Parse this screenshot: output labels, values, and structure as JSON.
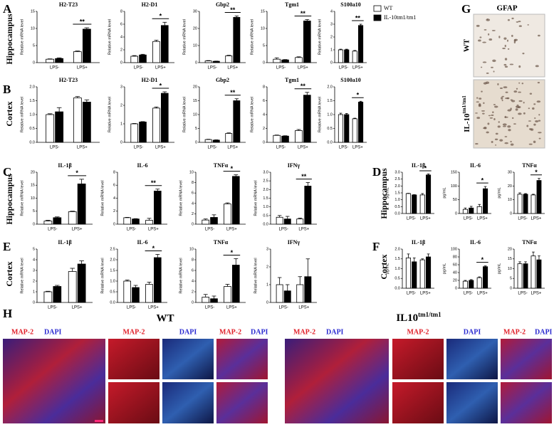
{
  "chart_data": [
    {
      "type": "bar",
      "title": "H2-T23",
      "ylabel": "Relative mRNA level",
      "categories": [
        "LPS-",
        "LPS+"
      ],
      "ylim": [
        0,
        15
      ],
      "yticks": [
        0,
        5,
        10,
        15
      ],
      "annotation": "**",
      "series": [
        {
          "name": "WT",
          "color": "#ffffff",
          "values": [
            1.0,
            3.2
          ],
          "errors": [
            0.1,
            0.2
          ]
        },
        {
          "name": "IL-10tm1/tm1",
          "color": "#000000",
          "values": [
            1.2,
            9.8
          ],
          "errors": [
            0.2,
            0.4
          ]
        }
      ]
    },
    {
      "type": "bar",
      "title": "H2-D1",
      "ylabel": "Relative mRNA level",
      "categories": [
        "LPS-",
        "LPS+"
      ],
      "ylim": [
        0,
        8
      ],
      "yticks": [
        0,
        2,
        4,
        6,
        8
      ],
      "annotation": "*",
      "series": [
        {
          "color": "#ffffff",
          "values": [
            1.0,
            3.3
          ],
          "errors": [
            0.1,
            0.2
          ]
        },
        {
          "color": "#000000",
          "values": [
            1.2,
            5.8
          ],
          "errors": [
            0.1,
            0.5
          ]
        }
      ]
    },
    {
      "type": "bar",
      "title": "Gbp2",
      "ylabel": "Relative mRNA level",
      "categories": [
        "LPS-",
        "LPS+"
      ],
      "ylim": [
        0,
        30
      ],
      "yticks": [
        0,
        10,
        20,
        30
      ],
      "annotation": "**",
      "series": [
        {
          "color": "#ffffff",
          "values": [
            1.0,
            4.0
          ],
          "errors": [
            0.2,
            0.3
          ]
        },
        {
          "color": "#000000",
          "values": [
            0.8,
            26.5
          ],
          "errors": [
            0.1,
            0.8
          ]
        }
      ]
    },
    {
      "type": "bar",
      "title": "Tgm1",
      "ylabel": "Relative mRNA level",
      "categories": [
        "LPS-",
        "LPS+"
      ],
      "ylim": [
        0,
        15
      ],
      "yticks": [
        0,
        5,
        10,
        15
      ],
      "annotation": "**",
      "series": [
        {
          "color": "#ffffff",
          "values": [
            1.0,
            1.5
          ],
          "errors": [
            0.4,
            0.2
          ]
        },
        {
          "color": "#000000",
          "values": [
            0.8,
            12.2
          ],
          "errors": [
            0.1,
            0.4
          ]
        }
      ]
    },
    {
      "type": "bar",
      "title": "S100a10",
      "ylabel": "Relative mRNA level",
      "categories": [
        "LPS-",
        "LPS+"
      ],
      "ylim": [
        0,
        4
      ],
      "yticks": [
        0,
        1,
        2,
        3,
        4
      ],
      "annotation": "**",
      "series": [
        {
          "color": "#ffffff",
          "values": [
            1.0,
            0.9
          ],
          "errors": [
            0.05,
            0.05
          ]
        },
        {
          "color": "#000000",
          "values": [
            1.0,
            2.9
          ],
          "errors": [
            0.05,
            0.1
          ]
        }
      ]
    },
    {
      "type": "bar",
      "title": "H2-T23",
      "ylabel": "Relative mRNA level",
      "categories": [
        "LPS-",
        "LPS+"
      ],
      "ylim": [
        0,
        2
      ],
      "yticks": [
        {
          "value": 0,
          "label": "0.0"
        },
        {
          "value": 0.5,
          "label": "0.5"
        },
        {
          "value": 1,
          "label": "1.0"
        },
        {
          "value": 1.5,
          "label": "1.5"
        },
        {
          "value": 2,
          "label": "2.0"
        }
      ],
      "series": [
        {
          "color": "#ffffff",
          "values": [
            1.0,
            1.6
          ],
          "errors": [
            0.03,
            0.05
          ]
        },
        {
          "color": "#000000",
          "values": [
            1.1,
            1.45
          ],
          "errors": [
            0.15,
            0.08
          ]
        }
      ]
    },
    {
      "type": "bar",
      "title": "H2-D1",
      "ylabel": "Relative mRNA level",
      "categories": [
        "LPS-",
        "LPS+"
      ],
      "ylim": [
        0,
        3
      ],
      "yticks": [
        0,
        1,
        2,
        3
      ],
      "annotation": "*",
      "series": [
        {
          "color": "#ffffff",
          "values": [
            1.0,
            1.85
          ],
          "errors": [
            0.02,
            0.06
          ]
        },
        {
          "color": "#000000",
          "values": [
            1.1,
            2.65
          ],
          "errors": [
            0.02,
            0.08
          ]
        }
      ]
    },
    {
      "type": "bar",
      "title": "Gbp2",
      "ylabel": "Relative mRNA level",
      "categories": [
        "LPS-",
        "LPS+"
      ],
      "ylim": [
        0,
        20
      ],
      "yticks": [
        0,
        5,
        10,
        15,
        20
      ],
      "annotation": "**",
      "series": [
        {
          "color": "#ffffff",
          "values": [
            1.0,
            3.2
          ],
          "errors": [
            0.1,
            0.2
          ]
        },
        {
          "color": "#000000",
          "values": [
            0.8,
            15
          ],
          "errors": [
            0.1,
            0.7
          ]
        }
      ]
    },
    {
      "type": "bar",
      "title": "Tgm1",
      "ylabel": "Relative mRNA level",
      "categories": [
        "LPS-",
        "LPS+"
      ],
      "ylim": [
        0,
        8
      ],
      "yticks": [
        0,
        2,
        4,
        6,
        8
      ],
      "annotation": "**",
      "series": [
        {
          "color": "#ffffff",
          "values": [
            1.0,
            1.7
          ],
          "errors": [
            0.05,
            0.15
          ]
        },
        {
          "color": "#000000",
          "values": [
            0.9,
            6.8
          ],
          "errors": [
            0.05,
            0.4
          ]
        }
      ]
    },
    {
      "type": "bar",
      "title": "S100a10",
      "ylabel": "Relative mRNA level",
      "categories": [
        "LPS-",
        "LPS+"
      ],
      "ylim": [
        0,
        2
      ],
      "yticks": [
        {
          "value": 0,
          "label": "0.0"
        },
        {
          "value": 0.5,
          "label": "0.5"
        },
        {
          "value": 1,
          "label": "1.0"
        },
        {
          "value": 1.5,
          "label": "1.5"
        },
        {
          "value": 2,
          "label": "2.0"
        }
      ],
      "annotation": "*",
      "series": [
        {
          "color": "#ffffff",
          "values": [
            1.0,
            0.85
          ],
          "errors": [
            0.05,
            0.02
          ]
        },
        {
          "color": "#000000",
          "values": [
            1.0,
            1.45
          ],
          "errors": [
            0.04,
            0.03
          ]
        }
      ]
    },
    {
      "type": "bar",
      "title": "IL-1β",
      "ylabel": "Relative mRNA level",
      "categories": [
        "LPS-",
        "LPS+"
      ],
      "ylim": [
        0,
        20
      ],
      "yticks": [
        0,
        5,
        10,
        15,
        20
      ],
      "annotation": "*",
      "series": [
        {
          "color": "#ffffff",
          "values": [
            1.2,
            4.8
          ],
          "errors": [
            0.3,
            0.2
          ]
        },
        {
          "color": "#000000",
          "values": [
            2.5,
            15.5
          ],
          "errors": [
            0.3,
            1.8
          ]
        }
      ]
    },
    {
      "type": "bar",
      "title": "IL-6",
      "ylabel": "Relative mRNA level",
      "categories": [
        "LPS-",
        "LPS+"
      ],
      "ylim": [
        0,
        8
      ],
      "yticks": [
        0,
        2,
        4,
        6,
        8
      ],
      "annotation": "**",
      "series": [
        {
          "color": "#ffffff",
          "values": [
            1.0,
            0.6
          ],
          "errors": [
            0.05,
            0.3
          ]
        },
        {
          "color": "#000000",
          "values": [
            0.8,
            5.1
          ],
          "errors": [
            0.05,
            0.3
          ]
        }
      ]
    },
    {
      "type": "bar",
      "title": "TNFα",
      "ylabel": "Relative mRNA level",
      "categories": [
        "LPS-",
        "LPS+"
      ],
      "ylim": [
        0,
        10
      ],
      "yticks": [
        0,
        2,
        4,
        6,
        8,
        10
      ],
      "annotation": "*",
      "series": [
        {
          "color": "#ffffff",
          "values": [
            0.8,
            3.9
          ],
          "errors": [
            0.2,
            0.2
          ]
        },
        {
          "color": "#000000",
          "values": [
            1.3,
            9.2
          ],
          "errors": [
            0.5,
            0.3
          ]
        }
      ]
    },
    {
      "type": "bar",
      "title": "IFNγ",
      "ylabel": "Relative mRNA level",
      "categories": [
        "LPS-",
        "LPS+"
      ],
      "ylim": [
        0,
        3
      ],
      "yticks": [
        {
          "value": 0,
          "label": "0.0"
        },
        {
          "value": 0.5,
          "label": "0.5"
        },
        {
          "value": 1,
          "label": "1.0"
        },
        {
          "value": 1.5,
          "label": "1.5"
        },
        {
          "value": 2,
          "label": "2.0"
        },
        {
          "value": 2.5,
          "label": "2.5"
        },
        {
          "value": 3,
          "label": "3.0"
        }
      ],
      "annotation": "**",
      "series": [
        {
          "color": "#ffffff",
          "values": [
            0.4,
            0.3
          ],
          "errors": [
            0.1,
            0.05
          ]
        },
        {
          "color": "#000000",
          "values": [
            0.3,
            2.2
          ],
          "errors": [
            0.15,
            0.2
          ]
        }
      ]
    },
    {
      "type": "bar",
      "title": "IL-1β",
      "ylabel": "Relative mRNA level",
      "categories": [
        "LPS-",
        "LPS+"
      ],
      "ylim": [
        0,
        5
      ],
      "yticks": [
        0,
        1,
        2,
        3,
        4,
        5
      ],
      "series": [
        {
          "color": "#ffffff",
          "values": [
            1.0,
            2.9
          ],
          "errors": [
            0.05,
            0.3
          ]
        },
        {
          "color": "#000000",
          "values": [
            1.5,
            3.6
          ],
          "errors": [
            0.1,
            0.3
          ]
        }
      ]
    },
    {
      "type": "bar",
      "title": "IL-6",
      "ylabel": "Relative mRNA level",
      "categories": [
        "LPS-",
        "LPS+"
      ],
      "ylim": [
        0,
        2.5
      ],
      "yticks": [
        {
          "value": 0,
          "label": "0.0"
        },
        {
          "value": 0.5,
          "label": "0.5"
        },
        {
          "value": 1,
          "label": "1.0"
        },
        {
          "value": 1.5,
          "label": "1.5"
        },
        {
          "value": 2,
          "label": "2.0"
        },
        {
          "value": 2.5,
          "label": "2.5"
        }
      ],
      "annotation": "*",
      "series": [
        {
          "color": "#ffffff",
          "values": [
            1.0,
            0.85
          ],
          "errors": [
            0.05,
            0.1
          ]
        },
        {
          "color": "#000000",
          "values": [
            0.7,
            2.1
          ],
          "errors": [
            0.1,
            0.15
          ]
        }
      ]
    },
    {
      "type": "bar",
      "title": "TNFα",
      "ylabel": "Relative mRNA level",
      "categories": [
        "LPS-",
        "LPS+"
      ],
      "ylim": [
        0,
        10
      ],
      "yticks": [
        0,
        2,
        4,
        6,
        8,
        10
      ],
      "annotation": "*",
      "series": [
        {
          "color": "#ffffff",
          "values": [
            1.0,
            3.0
          ],
          "errors": [
            0.5,
            0.4
          ]
        },
        {
          "color": "#000000",
          "values": [
            0.7,
            7.0
          ],
          "errors": [
            0.5,
            1.2
          ]
        }
      ]
    },
    {
      "type": "bar",
      "title": "IFNγ",
      "ylabel": "Relative mRNA level",
      "categories": [
        "LPS-",
        "LPS+"
      ],
      "ylim": [
        0,
        3
      ],
      "yticks": [
        0,
        1,
        2,
        3
      ],
      "series": [
        {
          "color": "#ffffff",
          "values": [
            1.0,
            1.0
          ],
          "errors": [
            0.4,
            0.45
          ]
        },
        {
          "color": "#000000",
          "values": [
            0.65,
            1.45
          ],
          "errors": [
            0.35,
            1.0
          ]
        }
      ]
    },
    {
      "type": "bar",
      "title": "IL-1β",
      "ylabel": "pg/mL",
      "categories": [
        "LPS-",
        "LPS+"
      ],
      "ylim": [
        0,
        3
      ],
      "yticks": [
        {
          "value": 0,
          "label": "0.0"
        },
        {
          "value": 0.5,
          "label": "0.5"
        },
        {
          "value": 1,
          "label": "1.0"
        },
        {
          "value": 1.5,
          "label": "1.5"
        },
        {
          "value": 2,
          "label": "2.0"
        },
        {
          "value": 2.5,
          "label": "2.5"
        },
        {
          "value": 3,
          "label": "3.0"
        }
      ],
      "annotation": "*",
      "series": [
        {
          "color": "#ffffff",
          "values": [
            1.45,
            1.35
          ],
          "errors": [
            0.02,
            0.1
          ]
        },
        {
          "color": "#000000",
          "values": [
            1.35,
            2.8
          ],
          "errors": [
            0.02,
            0.08
          ]
        }
      ]
    },
    {
      "type": "bar",
      "title": "IL-6",
      "ylabel": "pg/mL",
      "categories": [
        "LPS-",
        "LPS+"
      ],
      "ylim": [
        0,
        150
      ],
      "yticks": [
        0,
        50,
        100,
        150
      ],
      "annotation": "*",
      "series": [
        {
          "color": "#ffffff",
          "values": [
            15,
            25
          ],
          "errors": [
            5,
            8
          ]
        },
        {
          "color": "#000000",
          "values": [
            20,
            90
          ],
          "errors": [
            6,
            8
          ]
        }
      ]
    },
    {
      "type": "bar",
      "title": "TNFα",
      "ylabel": "pg/mL",
      "categories": [
        "LPS-",
        "LPS+"
      ],
      "ylim": [
        0,
        30
      ],
      "yticks": [
        0,
        10,
        20,
        30
      ],
      "annotation": "*",
      "series": [
        {
          "color": "#ffffff",
          "values": [
            14,
            13.5
          ],
          "errors": [
            1,
            0.5
          ]
        },
        {
          "color": "#000000",
          "values": [
            14,
            24
          ],
          "errors": [
            0.5,
            1.5
          ]
        }
      ]
    },
    {
      "type": "bar",
      "title": "IL-1β",
      "ylabel": "pg/mL",
      "categories": [
        "LPS-",
        "LPS+"
      ],
      "ylim": [
        0,
        2
      ],
      "yticks": [
        {
          "value": 0,
          "label": "0.0"
        },
        {
          "value": 0.5,
          "label": "0.5"
        },
        {
          "value": 1,
          "label": "1.0"
        },
        {
          "value": 1.5,
          "label": "1.5"
        },
        {
          "value": 2,
          "label": "2.0"
        }
      ],
      "series": [
        {
          "color": "#ffffff",
          "values": [
            1.55,
            1.45
          ],
          "errors": [
            0.2,
            0.05
          ]
        },
        {
          "color": "#000000",
          "values": [
            1.35,
            1.6
          ],
          "errors": [
            0.2,
            0.15
          ]
        }
      ]
    },
    {
      "type": "bar",
      "title": "IL-6",
      "ylabel": "pg/mL",
      "categories": [
        "LPS-",
        "LPS+"
      ],
      "ylim": [
        0,
        100
      ],
      "yticks": [
        0,
        20,
        40,
        60,
        80,
        100
      ],
      "annotation": "*",
      "series": [
        {
          "color": "#ffffff",
          "values": [
            18,
            27
          ],
          "errors": [
            2,
            2
          ]
        },
        {
          "color": "#000000",
          "values": [
            20,
            55
          ],
          "errors": [
            2,
            2
          ]
        }
      ]
    },
    {
      "type": "bar",
      "title": "TNFα",
      "ylabel": "pg/mL",
      "categories": [
        "LPS-",
        "LPS+"
      ],
      "ylim": [
        0,
        20
      ],
      "yticks": [
        0,
        5,
        10,
        15,
        20
      ],
      "series": [
        {
          "color": "#ffffff",
          "values": [
            12.5,
            16.5
          ],
          "errors": [
            1,
            2
          ]
        },
        {
          "color": "#000000",
          "values": [
            12.5,
            14.5
          ],
          "errors": [
            1,
            2
          ]
        }
      ]
    }
  ],
  "figure": {
    "panels": [
      "A",
      "B",
      "C",
      "D",
      "E",
      "F",
      "G",
      "H"
    ],
    "hippocampus": "Hippocampus",
    "cortex": "Cortex",
    "g": {
      "title": "GFAP",
      "wt": "WT",
      "ko": "IL-10",
      "ko_sup": "tm1/tm1"
    },
    "h": {
      "wt": "WT",
      "ko": "IL10",
      "ko_sup": "tm1/tm1",
      "map2": "MAP-2",
      "dapi": "DAPI"
    }
  }
}
